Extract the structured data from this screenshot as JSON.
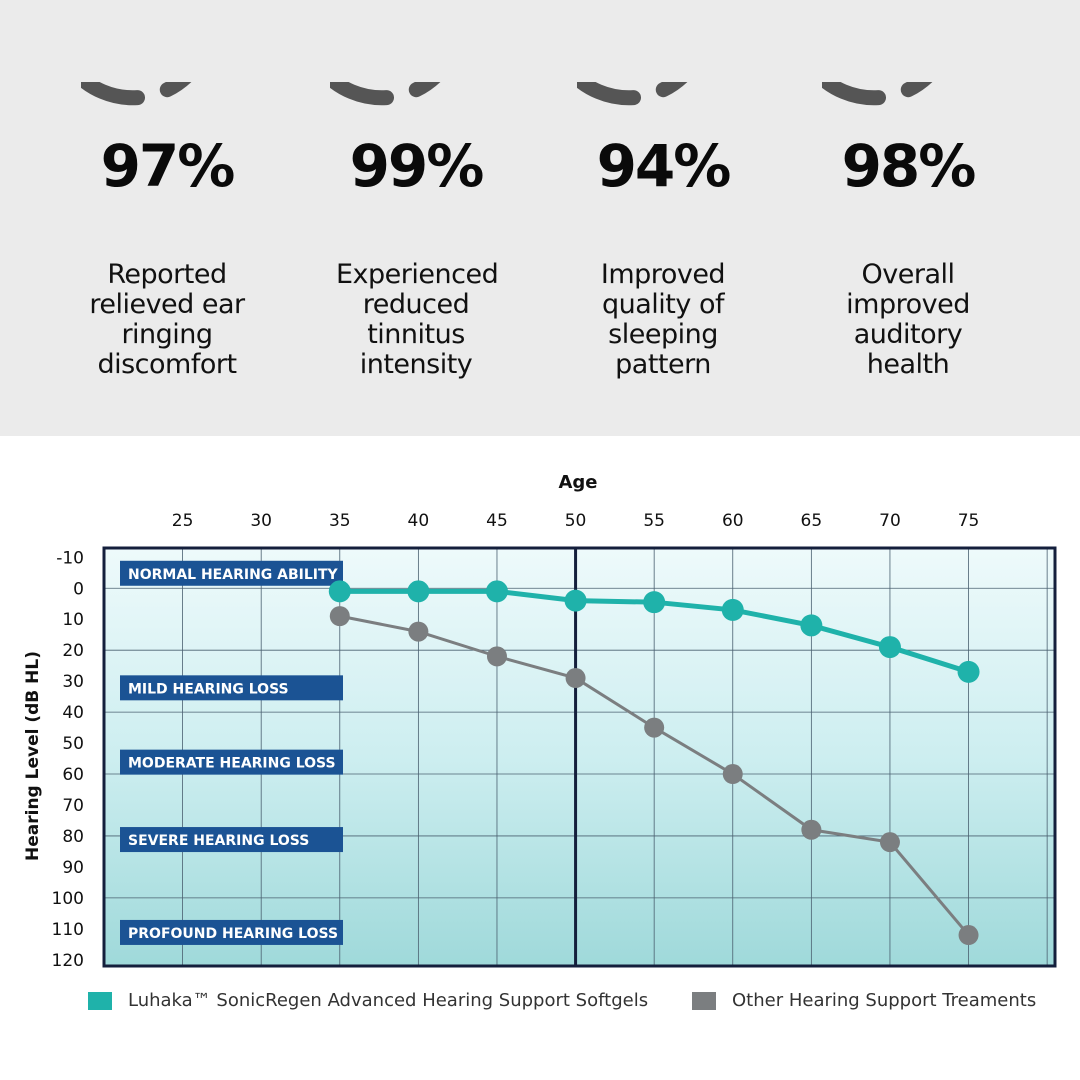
{
  "stats": [
    {
      "value": "97%",
      "label": "Reported relieved ear ringing discomfort"
    },
    {
      "value": "99%",
      "label": "Experienced reduced tinnitus intensity"
    },
    {
      "value": "94%",
      "label": "Improved quality of sleeping pattern"
    },
    {
      "value": "98%",
      "label": "Overall improved auditory health"
    }
  ],
  "colors": {
    "teal": "#1fb2aa",
    "gray": "#7b7e80",
    "label_bg": "#1b5394",
    "frame": "#141f3c",
    "ring": "#555555"
  },
  "chart_data": {
    "type": "line",
    "xlabel": "Age",
    "ylabel": "Hearing Level (dB HL)",
    "x_ticks": [
      25,
      30,
      35,
      40,
      45,
      50,
      55,
      60,
      65,
      70,
      75
    ],
    "y_ticks": [
      -10,
      0,
      10,
      20,
      30,
      40,
      50,
      60,
      70,
      80,
      90,
      100,
      110,
      120
    ],
    "ylim": [
      -13,
      122
    ],
    "xlim": [
      20,
      80.5
    ],
    "y_inverted": true,
    "grid": true,
    "x": [
      35,
      40,
      45,
      50,
      55,
      60,
      65,
      70,
      75
    ],
    "series": [
      {
        "name": "Luhaka™ SonicRegen Advanced Hearing Support Softgels",
        "color": "#1fb2aa",
        "values": [
          1,
          1,
          1,
          4,
          4.5,
          7,
          12,
          19,
          27
        ]
      },
      {
        "name": "Other Hearing Support Treaments",
        "color": "#7b7e80",
        "values": [
          9,
          14,
          22,
          29,
          45,
          60,
          78,
          82,
          112
        ]
      }
    ],
    "band_labels": [
      {
        "text": "NORMAL HEARING ABILITY",
        "y": -5
      },
      {
        "text": "MILD HEARING LOSS",
        "y": 32
      },
      {
        "text": "MODERATE HEARING LOSS",
        "y": 56
      },
      {
        "text": "SEVERE HEARING LOSS",
        "y": 81
      },
      {
        "text": "PROFOUND HEARING LOSS",
        "y": 111
      }
    ]
  }
}
